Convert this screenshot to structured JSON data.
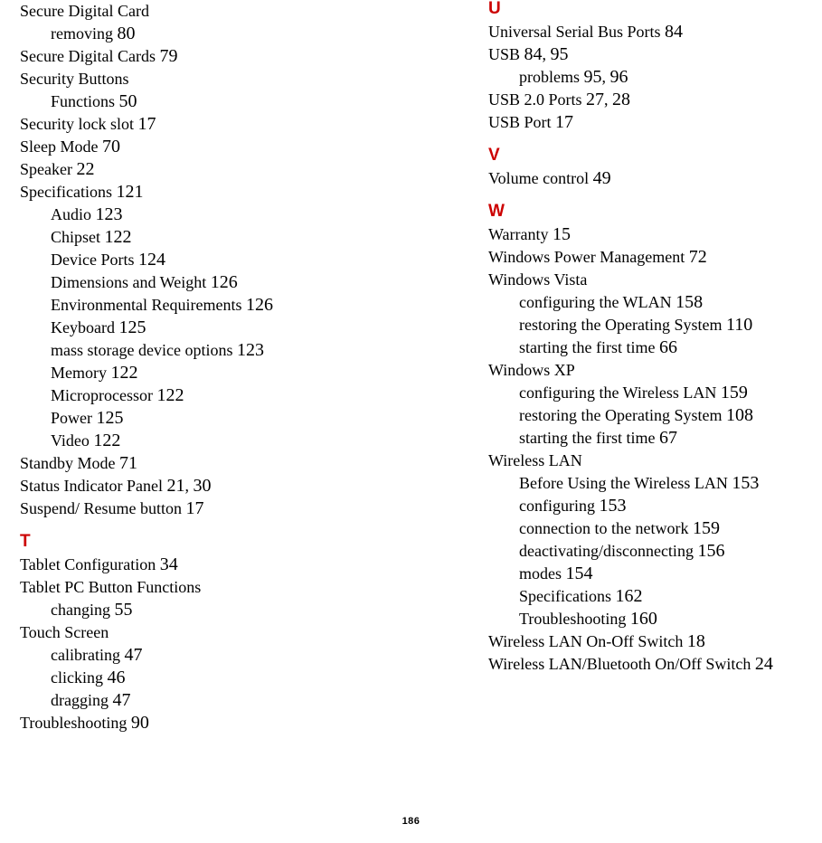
{
  "page_number": "186",
  "letter_color": "#cc0000",
  "text_color": "#000000",
  "background_color": "#ffffff",
  "font_family_body": "Times New Roman",
  "font_family_heading": "Arial",
  "left": [
    {
      "type": "entry",
      "text": "Secure Digital Card",
      "page": ""
    },
    {
      "type": "sub",
      "text": "removing",
      "page": "80"
    },
    {
      "type": "entry",
      "text": "Secure Digital Cards",
      "page": "79"
    },
    {
      "type": "entry",
      "text": "Security Buttons",
      "page": ""
    },
    {
      "type": "sub",
      "text": "Functions",
      "page": "50"
    },
    {
      "type": "entry",
      "text": "Security lock slot",
      "page": "17"
    },
    {
      "type": "entry",
      "text": "Sleep Mode",
      "page": "70"
    },
    {
      "type": "entry",
      "text": "Speaker",
      "page": "22"
    },
    {
      "type": "entry",
      "text": "Specifications",
      "page": "121"
    },
    {
      "type": "sub",
      "text": "Audio",
      "page": "123"
    },
    {
      "type": "sub",
      "text": "Chipset",
      "page": "122"
    },
    {
      "type": "sub",
      "text": "Device Ports",
      "page": "124"
    },
    {
      "type": "sub",
      "text": "Dimensions and Weight",
      "page": "126"
    },
    {
      "type": "sub",
      "text": "Environmental Requirements",
      "page": "126"
    },
    {
      "type": "sub",
      "text": "Keyboard",
      "page": "125"
    },
    {
      "type": "sub",
      "text": "mass storage device options",
      "page": "123"
    },
    {
      "type": "sub",
      "text": "Memory",
      "page": "122"
    },
    {
      "type": "sub",
      "text": "Microprocessor",
      "page": "122"
    },
    {
      "type": "sub",
      "text": "Power",
      "page": "125"
    },
    {
      "type": "sub",
      "text": "Video",
      "page": "122"
    },
    {
      "type": "entry",
      "text": "Standby Mode",
      "page": "71"
    },
    {
      "type": "entry_multi",
      "text": "Status Indicator Panel",
      "pages": [
        "21",
        "30"
      ]
    },
    {
      "type": "entry",
      "text": "Suspend/ Resume button",
      "page": "17"
    },
    {
      "type": "letter",
      "text": "T"
    },
    {
      "type": "entry",
      "text": "Tablet Configuration",
      "page": "34"
    },
    {
      "type": "entry",
      "text": "Tablet PC Button Functions",
      "page": ""
    },
    {
      "type": "sub",
      "text": "changing",
      "page": "55"
    },
    {
      "type": "entry",
      "text": "Touch Screen",
      "page": ""
    },
    {
      "type": "sub",
      "text": "calibrating",
      "page": "47"
    },
    {
      "type": "sub",
      "text": "clicking",
      "page": "46"
    },
    {
      "type": "sub",
      "text": "dragging",
      "page": "47"
    },
    {
      "type": "entry",
      "text": "Troubleshooting",
      "page": "90"
    }
  ],
  "right": [
    {
      "type": "letter",
      "text": "U",
      "first": true
    },
    {
      "type": "entry",
      "text": "Universal Serial Bus Ports",
      "page": "84"
    },
    {
      "type": "entry_multi",
      "text": "USB",
      "pages": [
        "84",
        "95"
      ]
    },
    {
      "type": "sub_multi",
      "text": "problems",
      "pages": [
        "95",
        "96"
      ]
    },
    {
      "type": "entry_multi",
      "text": "USB 2.0 Ports",
      "pages": [
        "27",
        "28"
      ]
    },
    {
      "type": "entry",
      "text": "USB Port",
      "page": "17"
    },
    {
      "type": "letter",
      "text": "V"
    },
    {
      "type": "entry",
      "text": "Volume control",
      "page": "49"
    },
    {
      "type": "letter",
      "text": "W"
    },
    {
      "type": "entry",
      "text": "Warranty",
      "page": "15"
    },
    {
      "type": "entry",
      "text": "Windows Power Management",
      "page": "72"
    },
    {
      "type": "entry",
      "text": "Windows Vista",
      "page": ""
    },
    {
      "type": "sub",
      "text": "configuring the WLAN",
      "page": "158"
    },
    {
      "type": "sub",
      "text": "restoring the Operating System",
      "page": "110"
    },
    {
      "type": "sub",
      "text": "starting the first time",
      "page": "66"
    },
    {
      "type": "entry",
      "text": "Windows XP",
      "page": ""
    },
    {
      "type": "sub",
      "text": "configuring the Wireless LAN",
      "page": "159"
    },
    {
      "type": "sub",
      "text": "restoring the Operating System",
      "page": "108"
    },
    {
      "type": "sub",
      "text": "starting the first time",
      "page": "67"
    },
    {
      "type": "entry",
      "text": "Wireless LAN",
      "page": ""
    },
    {
      "type": "sub",
      "text": "Before Using the Wireless LAN",
      "page": "153"
    },
    {
      "type": "sub",
      "text": "configuring",
      "page": "153"
    },
    {
      "type": "sub",
      "text": "connection to the network",
      "page": "159"
    },
    {
      "type": "sub",
      "text": "deactivating/disconnecting",
      "page": "156"
    },
    {
      "type": "sub",
      "text": "modes",
      "page": "154"
    },
    {
      "type": "sub",
      "text": "Specifications",
      "page": "162"
    },
    {
      "type": "sub",
      "text": "Troubleshooting",
      "page": "160"
    },
    {
      "type": "entry",
      "text": "Wireless LAN On-Off Switch",
      "page": "18"
    },
    {
      "type": "entry",
      "text": "Wireless LAN/Bluetooth On/Off Switch",
      "page": "24"
    }
  ]
}
